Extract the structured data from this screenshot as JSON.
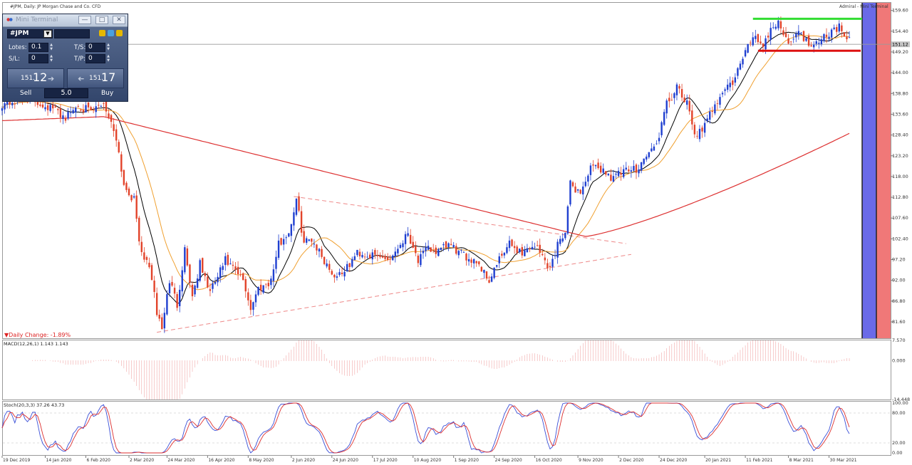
{
  "header": {
    "left_title": "#JPM, Daily:  JP Morgan Chase and Co. CFD",
    "right_title": "Admiral - Mini Terminal"
  },
  "labels": {
    "daily_change": "▼Daily Change: -1.89%",
    "macd_label": "MACD(12,26,1) 1.143 1.143",
    "stoch_label": "Stoch(20,3,3) 37.26 43.73",
    "current_price": "151.12"
  },
  "mini_terminal": {
    "title": "Mini Terminal",
    "symbol": "#JPM",
    "lots_label": "Lotes:",
    "lots_value": "0.1",
    "ts_label": "T/S:",
    "ts_value": "0",
    "sl_label": "S/L:",
    "sl_value": "0",
    "tp_label": "T/P:",
    "tp_value": "0",
    "sell_price_small": "151.",
    "sell_price_big": "12",
    "buy_price_small": "151.",
    "buy_price_big": "17",
    "sell_label": "Sell",
    "buy_label": "Buy",
    "spread": "5.0",
    "minimize": "—",
    "restore": "□",
    "close": "✕"
  },
  "colors": {
    "bull_candle": "#1f3fd0",
    "bear_candle": "#e2432a",
    "sma_fast": "#000000",
    "sma_mid": "#f0a030",
    "sma_slow": "#dd3030",
    "trendline": "#ee8888",
    "resistance": "#33dd33",
    "support": "#dd1111",
    "macd": "#dd3030",
    "stoch_main": "#3a4fd8",
    "stoch_signal": "#dd3030"
  },
  "chart_data": [
    {
      "type": "candlestick",
      "instrument": "#JPM",
      "timeframe": "Daily",
      "ylim": [
        77.5,
        161.5
      ],
      "y_ticks": [
        "159.60",
        "154.40",
        "149.20",
        "144.00",
        "138.80",
        "133.60",
        "128.40",
        "123.20",
        "118.00",
        "112.80",
        "107.60",
        "102.40",
        "97.20",
        "92.00",
        "86.80",
        "81.60"
      ],
      "y_ticks_values": [
        159.6,
        154.4,
        149.2,
        144.0,
        138.8,
        133.6,
        128.4,
        123.2,
        118.0,
        112.8,
        107.6,
        102.4,
        97.2,
        92.0,
        86.8,
        81.6
      ],
      "x_ticks": [
        "19 Dec 2019",
        "14 Jan 2020",
        "6 Feb 2020",
        "2 Mar 2020",
        "24 Mar 2020",
        "16 Apr 2020",
        "8 May 2020",
        "2 Jun 2020",
        "24 Jun 2020",
        "17 Jul 2020",
        "10 Aug 2020",
        "1 Sep 2020",
        "24 Sep 2020",
        "16 Oct 2020",
        "9 Nov 2020",
        "2 Dec 2020",
        "24 Dec 2020",
        "20 Jan 2021",
        "11 Feb 2021",
        "8 Mar 2021",
        "30 Mar 2021"
      ],
      "x_tick_index": [
        0,
        17,
        33,
        50,
        65,
        81,
        97,
        114,
        130,
        146,
        162,
        178,
        194,
        210,
        227,
        243,
        259,
        277,
        293,
        310,
        326
      ],
      "close_anchors": [
        [
          0,
          136.2
        ],
        [
          10,
          137.5
        ],
        [
          20,
          135.0
        ],
        [
          25,
          132.8
        ],
        [
          30,
          136.0
        ],
        [
          35,
          134.0
        ],
        [
          40,
          136.5
        ],
        [
          45,
          128.0
        ],
        [
          48,
          116.0
        ],
        [
          52,
          112.0
        ],
        [
          55,
          98.0
        ],
        [
          58,
          96.0
        ],
        [
          61,
          84.0
        ],
        [
          63,
          80.0
        ],
        [
          66,
          92.0
        ],
        [
          69,
          86.0
        ],
        [
          72,
          100.0
        ],
        [
          75,
          88.0
        ],
        [
          78,
          96.0
        ],
        [
          82,
          89.0
        ],
        [
          88,
          97.0
        ],
        [
          95,
          92.0
        ],
        [
          98,
          85.0
        ],
        [
          101,
          90.0
        ],
        [
          106,
          92.0
        ],
        [
          109,
          101.0
        ],
        [
          113,
          104.0
        ],
        [
          116,
          112.0
        ],
        [
          119,
          101.5
        ],
        [
          122,
          102.5
        ],
        [
          127,
          97.0
        ],
        [
          131,
          93.0
        ],
        [
          136,
          95.0
        ],
        [
          140,
          99.0
        ],
        [
          146,
          98.0
        ],
        [
          153,
          97.5
        ],
        [
          160,
          104.0
        ],
        [
          164,
          97.0
        ],
        [
          168,
          100.0
        ],
        [
          172,
          99.0
        ],
        [
          176,
          101.0
        ],
        [
          182,
          98.0
        ],
        [
          187,
          97.0
        ],
        [
          192,
          92.0
        ],
        [
          195,
          96.0
        ],
        [
          200,
          101.0
        ],
        [
          205,
          99.0
        ],
        [
          210,
          101.0
        ],
        [
          216,
          95.0
        ],
        [
          220,
          103.0
        ],
        [
          222,
          104.0
        ],
        [
          224,
          116.0
        ],
        [
          228,
          114.0
        ],
        [
          232,
          120.0
        ],
        [
          236,
          120.0
        ],
        [
          240,
          118.0
        ],
        [
          245,
          119.0
        ],
        [
          250,
          120.0
        ],
        [
          255,
          124.0
        ],
        [
          258,
          126.0
        ],
        [
          262,
          136.0
        ],
        [
          266,
          140.0
        ],
        [
          270,
          136.0
        ],
        [
          273,
          129.0
        ],
        [
          276,
          129.0
        ],
        [
          280,
          135.0
        ],
        [
          284,
          139.5
        ],
        [
          288,
          141.5
        ],
        [
          292,
          147.5
        ],
        [
          296,
          153.5
        ],
        [
          300,
          151.0
        ],
        [
          303,
          155.0
        ],
        [
          306,
          157.0
        ],
        [
          309,
          152.0
        ],
        [
          312,
          153.0
        ],
        [
          315,
          154.0
        ],
        [
          318,
          151.0
        ],
        [
          322,
          152.5
        ],
        [
          326,
          154.0
        ],
        [
          330,
          155.5
        ],
        [
          333,
          151.8
        ]
      ],
      "resistance": 157.5,
      "support": 149.5,
      "current_price": 151.12,
      "daily_change_percent": -1.89,
      "indicators": [
        {
          "name": "SMA fast",
          "color": "#000000"
        },
        {
          "name": "SMA mid",
          "color": "#f0a030"
        },
        {
          "name": "SMA 200",
          "color": "#dd3030"
        }
      ]
    },
    {
      "type": "bar",
      "name": "MACD(12,26,1)",
      "value": 1.143,
      "signal": 1.143,
      "y_ticks": [
        "7.570",
        "0.000",
        "-14.448"
      ],
      "y_ticks_values": [
        7.57,
        0.0,
        -14.448
      ],
      "ylim": [
        -14.448,
        7.57
      ]
    },
    {
      "type": "line",
      "name": "Stoch(20,3,3)",
      "main": 37.26,
      "signal": 43.73,
      "y_ticks": [
        "100.00",
        "80.00",
        "20.00",
        "0.00"
      ],
      "y_ticks_values": [
        100,
        80,
        20,
        0
      ],
      "levels": [
        80,
        20
      ],
      "ylim": [
        0,
        100
      ]
    }
  ]
}
